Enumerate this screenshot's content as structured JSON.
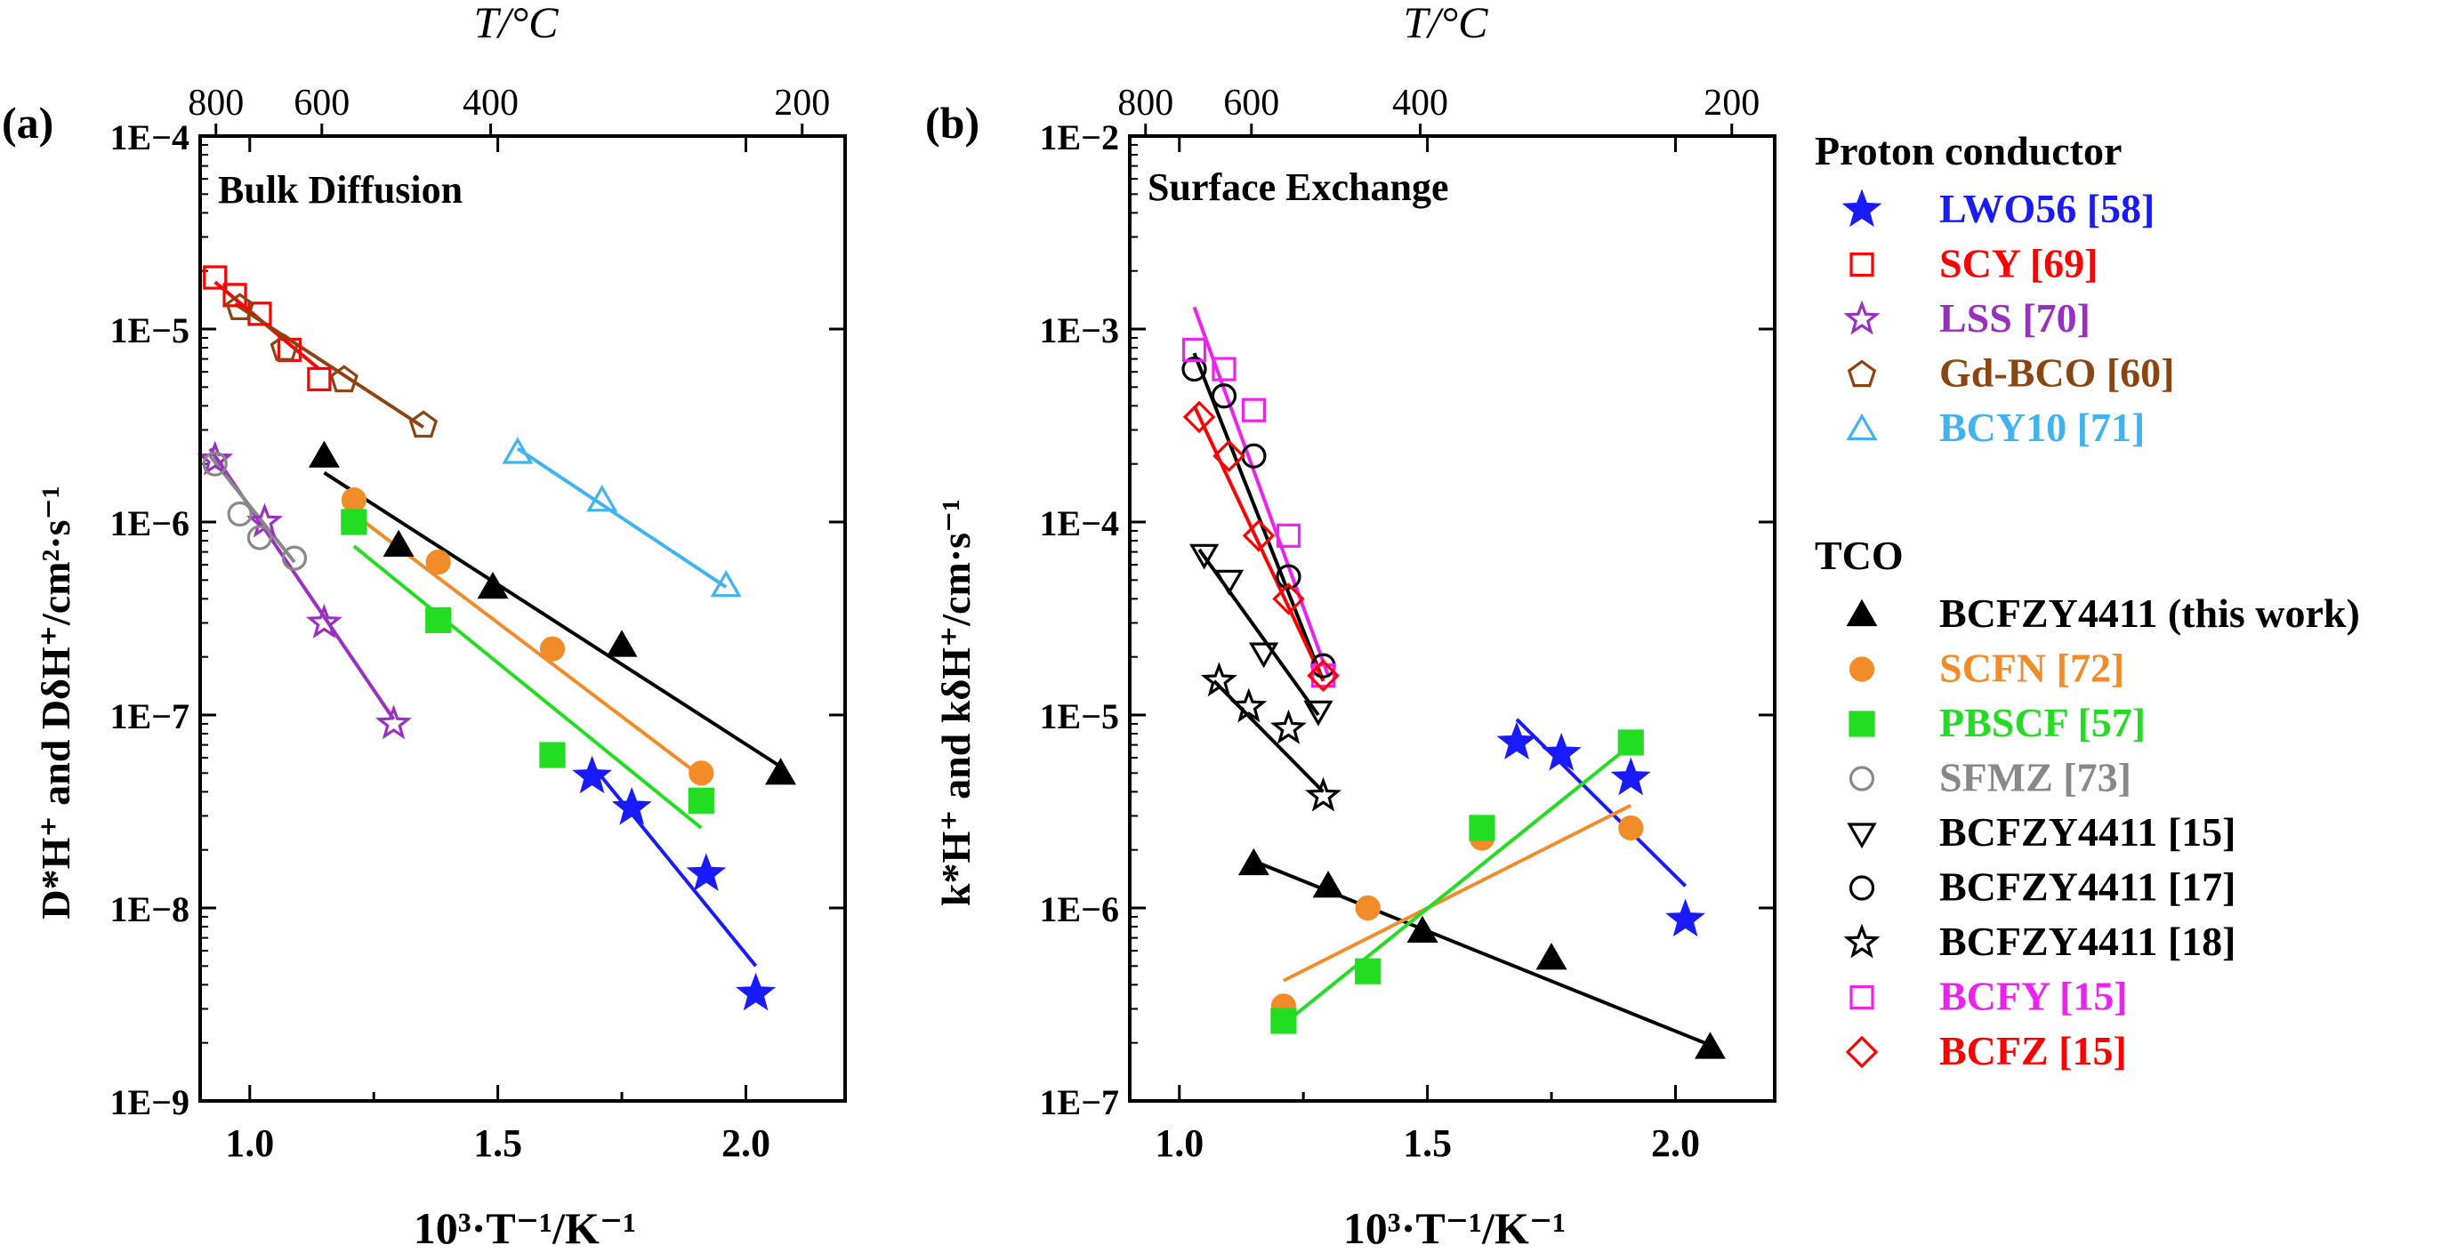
{
  "chart_data": [
    {
      "id": "a",
      "type": "scatter",
      "scale": "semilog-y",
      "panel_label": "(a)",
      "title": "Bulk Diffusion",
      "top_axis_label": "T/°C",
      "top_ticks": [
        "800",
        "600",
        "400",
        "200"
      ],
      "top_tick_values_c": [
        800,
        600,
        400,
        200
      ],
      "xlabel": "10³·T⁻¹/K⁻¹",
      "xlim": [
        0.9,
        2.2
      ],
      "x_ticks": [
        1.0,
        1.5,
        2.0
      ],
      "x_tick_labels": [
        "1.0",
        "1.5",
        "2.0"
      ],
      "ylabel": "D*H⁺ and DδH⁺/cm²·s⁻¹",
      "ylim": [
        1e-09,
        0.0001
      ],
      "y_ticks": [
        1e-09,
        1e-08,
        1e-07,
        1e-06,
        1e-05,
        0.0001
      ],
      "y_tick_labels": [
        "1E−9",
        "1E−8",
        "1E−7",
        "1E−6",
        "1E−5",
        "1E−4"
      ],
      "series": [
        {
          "name": "LWO56 [58]",
          "marker": "star-filled",
          "color": "#1a1aff",
          "points": [
            [
              1.69,
              4.8e-08
            ],
            [
              1.77,
              3.3e-08
            ],
            [
              1.92,
              1.5e-08
            ],
            [
              2.02,
              3.6e-09
            ]
          ],
          "fit": [
            [
              1.69,
              5.5e-08
            ],
            [
              2.02,
              5e-09
            ]
          ]
        },
        {
          "name": "SCY [69]",
          "marker": "square-open",
          "color": "#ff0000",
          "points": [
            [
              0.93,
              1.85e-05
            ],
            [
              0.97,
              1.5e-05
            ],
            [
              1.02,
              1.2e-05
            ],
            [
              1.08,
              7.8e-06
            ],
            [
              1.14,
              5.5e-06
            ]
          ],
          "fit": [
            [
              0.93,
              1.75e-05
            ],
            [
              1.14,
              6.2e-06
            ]
          ]
        },
        {
          "name": "LSS [70]",
          "marker": "star-open",
          "color": "#9a30c0",
          "points": [
            [
              0.93,
              2.1e-06
            ],
            [
              1.03,
              1e-06
            ],
            [
              1.15,
              3e-07
            ],
            [
              1.29,
              9e-08
            ]
          ],
          "fit": [
            [
              0.92,
              2.4e-06
            ],
            [
              1.29,
              9.5e-08
            ]
          ]
        },
        {
          "name": "Gd-BCO [60]",
          "marker": "pentagon-open",
          "color": "#8b4513",
          "points": [
            [
              0.98,
              1.3e-05
            ],
            [
              1.07,
              8e-06
            ],
            [
              1.19,
              5.5e-06
            ],
            [
              1.35,
              3.2e-06
            ]
          ],
          "fit": [
            [
              0.97,
              1.35e-05
            ],
            [
              1.35,
              3.1e-06
            ]
          ]
        },
        {
          "name": "BCY10 [71]",
          "marker": "triangle-open",
          "color": "#40b4f0",
          "points": [
            [
              1.54,
              2.3e-06
            ],
            [
              1.71,
              1.3e-06
            ],
            [
              1.96,
              4.7e-07
            ]
          ],
          "fit": [
            [
              1.54,
              2.4e-06
            ],
            [
              1.96,
              4.6e-07
            ]
          ]
        },
        {
          "name": "BCFZY4411 (this work)",
          "marker": "triangle-filled",
          "color": "#000000",
          "points": [
            [
              1.15,
              2.2e-06
            ],
            [
              1.3,
              7.6e-07
            ],
            [
              1.49,
              4.6e-07
            ],
            [
              1.75,
              2.3e-07
            ],
            [
              2.07,
              5e-08
            ]
          ],
          "fit": [
            [
              1.15,
              1.8e-06
            ],
            [
              2.08,
              5.2e-08
            ]
          ]
        },
        {
          "name": "SCFN [72]",
          "marker": "circle-filled",
          "color": "#f28c28",
          "points": [
            [
              1.21,
              1.3e-06
            ],
            [
              1.38,
              6.2e-07
            ],
            [
              1.61,
              2.2e-07
            ],
            [
              1.91,
              5e-08
            ]
          ],
          "fit": [
            [
              1.21,
              1.1e-06
            ],
            [
              1.91,
              4.8e-08
            ]
          ]
        },
        {
          "name": "PBSCF [57]",
          "marker": "square-filled",
          "color": "#22dd22",
          "points": [
            [
              1.21,
              1e-06
            ],
            [
              1.38,
              3.1e-07
            ],
            [
              1.61,
              6.2e-08
            ],
            [
              1.91,
              3.6e-08
            ]
          ],
          "fit": [
            [
              1.21,
              7.5e-07
            ],
            [
              1.91,
              2.6e-08
            ]
          ]
        },
        {
          "name": "SFMZ [73]",
          "marker": "circle-open",
          "color": "#888888",
          "points": [
            [
              0.93,
              2e-06
            ],
            [
              0.98,
              1.1e-06
            ],
            [
              1.02,
              8.3e-07
            ],
            [
              1.09,
              6.5e-07
            ]
          ],
          "fit": [
            [
              0.92,
              2.2e-06
            ],
            [
              1.09,
              6.2e-07
            ]
          ]
        }
      ]
    },
    {
      "id": "b",
      "type": "scatter",
      "scale": "semilog-y",
      "panel_label": "(b)",
      "title": "Surface Exchange",
      "top_axis_label": "T/°C",
      "top_ticks": [
        "800",
        "600",
        "400",
        "200"
      ],
      "top_tick_values_c": [
        800,
        600,
        400,
        200
      ],
      "xlabel": "10³·T⁻¹/K⁻¹",
      "xlim": [
        0.9,
        2.2
      ],
      "x_ticks": [
        1.0,
        1.5,
        2.0
      ],
      "x_tick_labels": [
        "1.0",
        "1.5",
        "2.0"
      ],
      "ylabel": "k*H⁺ and kδH⁺/cm·s⁻¹",
      "ylim": [
        1e-07,
        0.01
      ],
      "y_ticks": [
        1e-07,
        1e-06,
        1e-05,
        0.0001,
        0.001,
        0.01
      ],
      "y_tick_labels": [
        "1E−7",
        "1E−6",
        "1E−5",
        "1E−4",
        "1E−3",
        "1E−2"
      ],
      "series": [
        {
          "name": "LWO56 [58]",
          "marker": "star-filled",
          "color": "#1a1aff",
          "points": [
            [
              1.68,
              7.2e-06
            ],
            [
              1.77,
              6.3e-06
            ],
            [
              1.91,
              4.7e-06
            ],
            [
              2.02,
              8.7e-07
            ]
          ],
          "fit": [
            [
              1.68,
              9.5e-06
            ],
            [
              2.02,
              1.3e-06
            ]
          ]
        },
        {
          "name": "BCFZY4411 (this work)",
          "marker": "triangle-filled",
          "color": "#000000",
          "points": [
            [
              1.15,
              1.7e-06
            ],
            [
              1.3,
              1.3e-06
            ],
            [
              1.49,
              7.6e-07
            ],
            [
              1.75,
              5.5e-07
            ],
            [
              2.07,
              1.9e-07
            ]
          ],
          "fit": [
            [
              1.15,
              1.75e-06
            ],
            [
              2.08,
              1.9e-07
            ]
          ]
        },
        {
          "name": "SCFN [72]",
          "marker": "circle-filled",
          "color": "#f28c28",
          "points": [
            [
              1.21,
              3.1e-07
            ],
            [
              1.38,
              1e-06
            ],
            [
              1.61,
              2.3e-06
            ],
            [
              1.91,
              2.6e-06
            ]
          ],
          "fit": [
            [
              1.21,
              4.2e-07
            ],
            [
              1.91,
              3.4e-06
            ]
          ]
        },
        {
          "name": "PBSCF [57]",
          "marker": "square-filled",
          "color": "#22dd22",
          "points": [
            [
              1.21,
              2.6e-07
            ],
            [
              1.38,
              4.7e-07
            ],
            [
              1.61,
              2.6e-06
            ],
            [
              1.91,
              7.2e-06
            ]
          ],
          "fit": [
            [
              1.21,
              2.5e-07
            ],
            [
              1.91,
              7e-06
            ]
          ]
        },
        {
          "name": "BCFZY4411 [15]",
          "marker": "triangle-down-open",
          "color": "#000000",
          "points": [
            [
              1.05,
              6.8e-05
            ],
            [
              1.1,
              5e-05
            ],
            [
              1.17,
              2.1e-05
            ],
            [
              1.28,
              1.05e-05
            ]
          ],
          "fit": [
            [
              1.04,
              7.2e-05
            ],
            [
              1.28,
              1e-05
            ]
          ]
        },
        {
          "name": "BCFZY4411 [17]",
          "marker": "circle-open",
          "color": "#000000",
          "points": [
            [
              1.03,
              0.00062
            ],
            [
              1.09,
              0.00045
            ],
            [
              1.15,
              0.00022
            ],
            [
              1.22,
              5.2e-05
            ],
            [
              1.29,
              1.8e-05
            ]
          ],
          "fit": [
            [
              1.03,
              0.00075
            ],
            [
              1.29,
              1.5e-05
            ]
          ]
        },
        {
          "name": "BCFZY4411 [18]",
          "marker": "star-open",
          "color": "#000000",
          "points": [
            [
              1.08,
              1.5e-05
            ],
            [
              1.14,
              1.1e-05
            ],
            [
              1.22,
              8.5e-06
            ],
            [
              1.29,
              3.8e-06
            ]
          ],
          "fit": [
            [
              1.07,
              1.5e-05
            ],
            [
              1.29,
              4e-06
            ]
          ]
        },
        {
          "name": "BCFY [15]",
          "marker": "square-open",
          "color": "#ee22ee",
          "points": [
            [
              1.03,
              0.00078
            ],
            [
              1.09,
              0.00062
            ],
            [
              1.15,
              0.00038
            ],
            [
              1.22,
              8.5e-05
            ],
            [
              1.29,
              1.6e-05
            ]
          ],
          "fit": [
            [
              1.03,
              0.0013
            ],
            [
              1.3,
              1.6e-05
            ]
          ]
        },
        {
          "name": "BCFZ [15]",
          "marker": "diamond-open",
          "color": "#ff0000",
          "points": [
            [
              1.04,
              0.00035
            ],
            [
              1.1,
              0.00022
            ],
            [
              1.16,
              8.5e-05
            ],
            [
              1.22,
              4e-05
            ],
            [
              1.29,
              1.6e-05
            ]
          ],
          "fit": [
            [
              1.03,
              0.0004
            ],
            [
              1.29,
              1.5e-05
            ]
          ]
        }
      ]
    }
  ],
  "legend": {
    "group_proton": "Proton conductor",
    "group_tco": "TCO",
    "proton_items": [
      {
        "marker": "star-filled",
        "label": "LWO56 [58]",
        "color": "#1a1aff"
      },
      {
        "marker": "square-open",
        "label": "SCY [69]",
        "color": "#ff0000"
      },
      {
        "marker": "star-open",
        "label": "LSS [70]",
        "color": "#9a30c0"
      },
      {
        "marker": "pentagon-open",
        "label": "Gd-BCO [60]",
        "color": "#8b4513"
      },
      {
        "marker": "triangle-open",
        "label": "BCY10 [71]",
        "color": "#40b4f0"
      }
    ],
    "tco_items": [
      {
        "marker": "triangle-filled",
        "label": "BCFZY4411 (this work)",
        "color": "#000000"
      },
      {
        "marker": "circle-filled",
        "label": "SCFN [72]",
        "color": "#f28c28"
      },
      {
        "marker": "square-filled",
        "label": "PBSCF [57]",
        "color": "#22dd22"
      },
      {
        "marker": "circle-open",
        "label": "SFMZ [73]",
        "color": "#888888"
      },
      {
        "marker": "triangle-down-open",
        "label": "BCFZY4411 [15]",
        "color": "#000000"
      },
      {
        "marker": "circle-open",
        "label": "BCFZY4411 [17]",
        "color": "#000000"
      },
      {
        "marker": "star-open",
        "label": "BCFZY4411 [18]",
        "color": "#000000"
      },
      {
        "marker": "square-open",
        "label": "BCFY [15]",
        "color": "#ee22ee"
      },
      {
        "marker": "diamond-open",
        "label": "BCFZ [15]",
        "color": "#ff0000"
      }
    ]
  }
}
